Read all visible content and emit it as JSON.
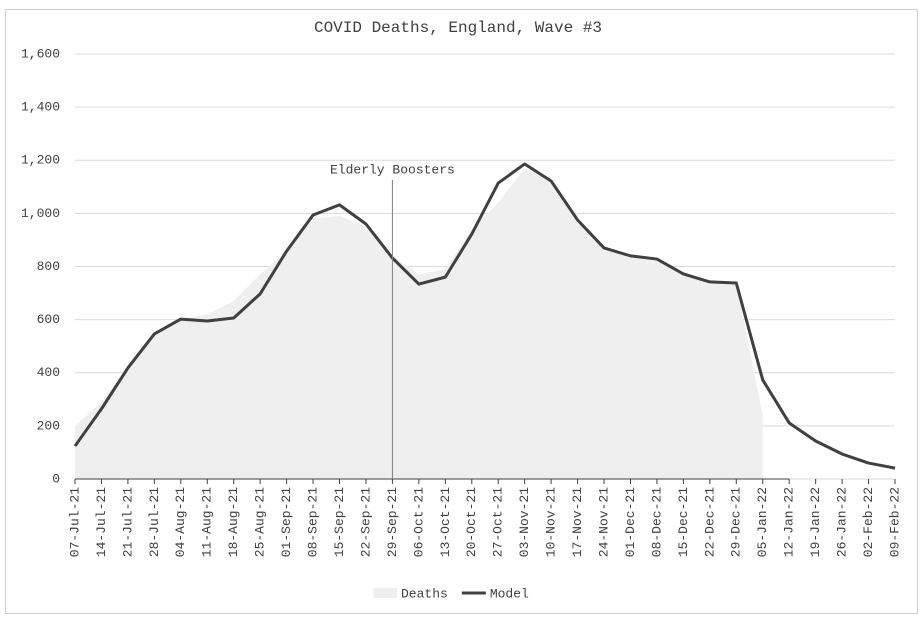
{
  "chart_data": {
    "type": "line",
    "title": "COVID Deaths, England, Wave #3",
    "categories": [
      "07-Jul-21",
      "14-Jul-21",
      "21-Jul-21",
      "28-Jul-21",
      "04-Aug-21",
      "11-Aug-21",
      "18-Aug-21",
      "25-Aug-21",
      "01-Sep-21",
      "08-Sep-21",
      "15-Sep-21",
      "22-Sep-21",
      "29-Sep-21",
      "06-Oct-21",
      "13-Oct-21",
      "20-Oct-21",
      "27-Oct-21",
      "03-Nov-21",
      "10-Nov-21",
      "17-Nov-21",
      "24-Nov-21",
      "01-Dec-21",
      "08-Dec-21",
      "15-Dec-21",
      "22-Dec-21",
      "29-Dec-21",
      "05-Jan-22",
      "12-Jan-22",
      "19-Jan-22",
      "26-Jan-22",
      "02-Feb-22",
      "09-Feb-22"
    ],
    "series": [
      {
        "name": "Deaths",
        "type": "area",
        "color": "#efefef",
        "values": [
          200,
          290,
          420,
          545,
          600,
          620,
          670,
          770,
          860,
          980,
          990,
          950,
          840,
          770,
          790,
          940,
          1040,
          1170,
          1120,
          980,
          870,
          840,
          825,
          770,
          745,
          735,
          240,
          null,
          null,
          null,
          null,
          null
        ]
      },
      {
        "name": "Model",
        "type": "line",
        "color": "#404040",
        "values": [
          124,
          264,
          418,
          546,
          602,
          595,
          606,
          697,
          858,
          994,
          1032,
          960,
          832,
          734,
          760,
          922,
          1114,
          1186,
          1122,
          975,
          870,
          840,
          828,
          772,
          742,
          738,
          373,
          211,
          143,
          94,
          60,
          41
        ]
      }
    ],
    "ylim": [
      0,
      1600
    ],
    "yticks": [
      0,
      200,
      400,
      600,
      800,
      {
        "value": 1000,
        "label": "1,000"
      },
      {
        "value": 1200,
        "label": "1,200"
      },
      {
        "value": 1400,
        "label": "1,400"
      },
      {
        "value": 1600,
        "label": "1,600"
      }
    ],
    "grid": true,
    "legend": "bottom",
    "annotations": [
      {
        "text": "Elderly Boosters",
        "x": "29-Sep-21"
      }
    ]
  }
}
